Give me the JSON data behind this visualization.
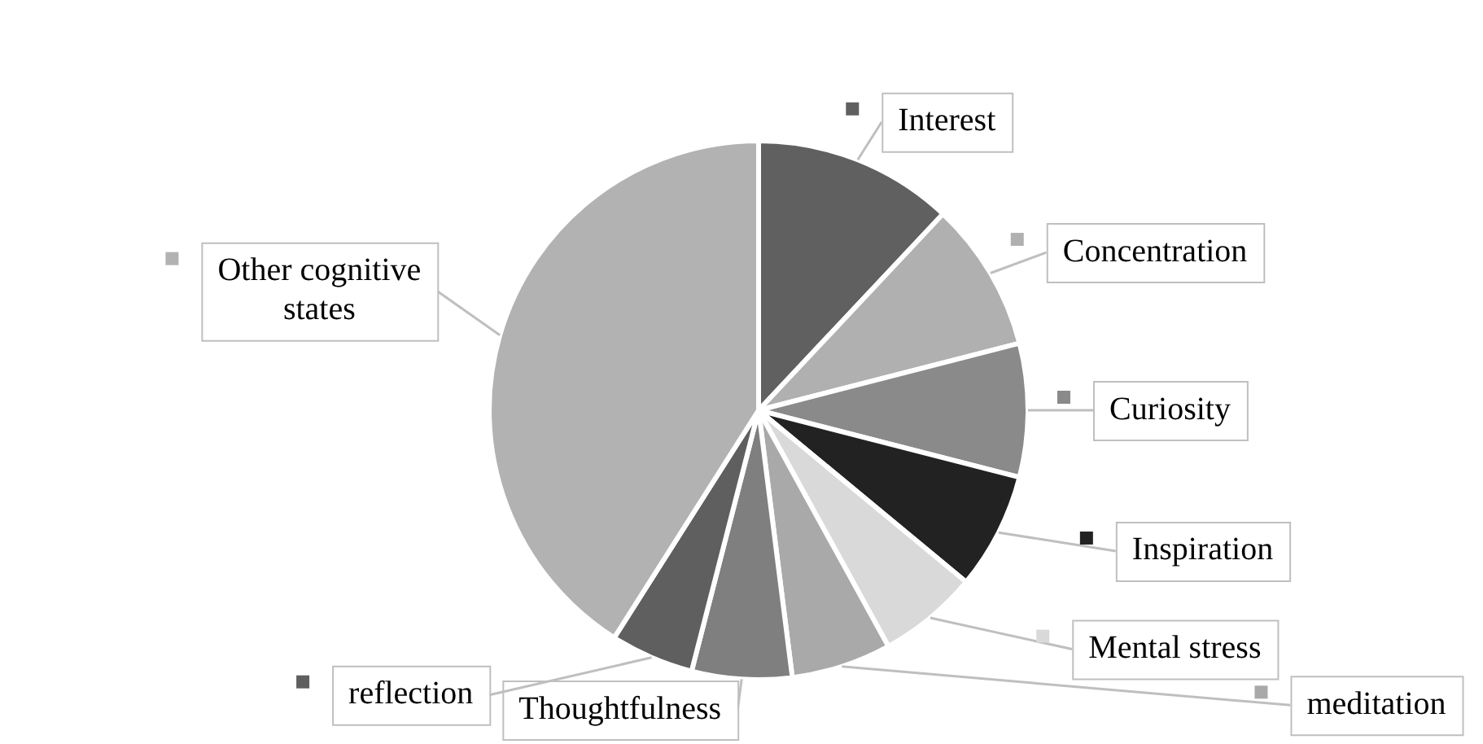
{
  "chart_data": {
    "type": "pie",
    "categories": [
      "Interest",
      "Concentration",
      "Curiosity",
      "Inspiration",
      "Mental stress",
      "meditation",
      "Thoughtfulness",
      "reflection",
      "Other cognitive states"
    ],
    "values": [
      12,
      9,
      8,
      7,
      6,
      6,
      6,
      5,
      41
    ],
    "legend": "right",
    "colors": [
      "#606060",
      "#b0b0b0",
      "#8a8a8a",
      "#222222",
      "#d9d9d9",
      "#a9a9a9",
      "#7f7f7f",
      "#5f5f5f",
      "#b2b2b2"
    ]
  }
}
